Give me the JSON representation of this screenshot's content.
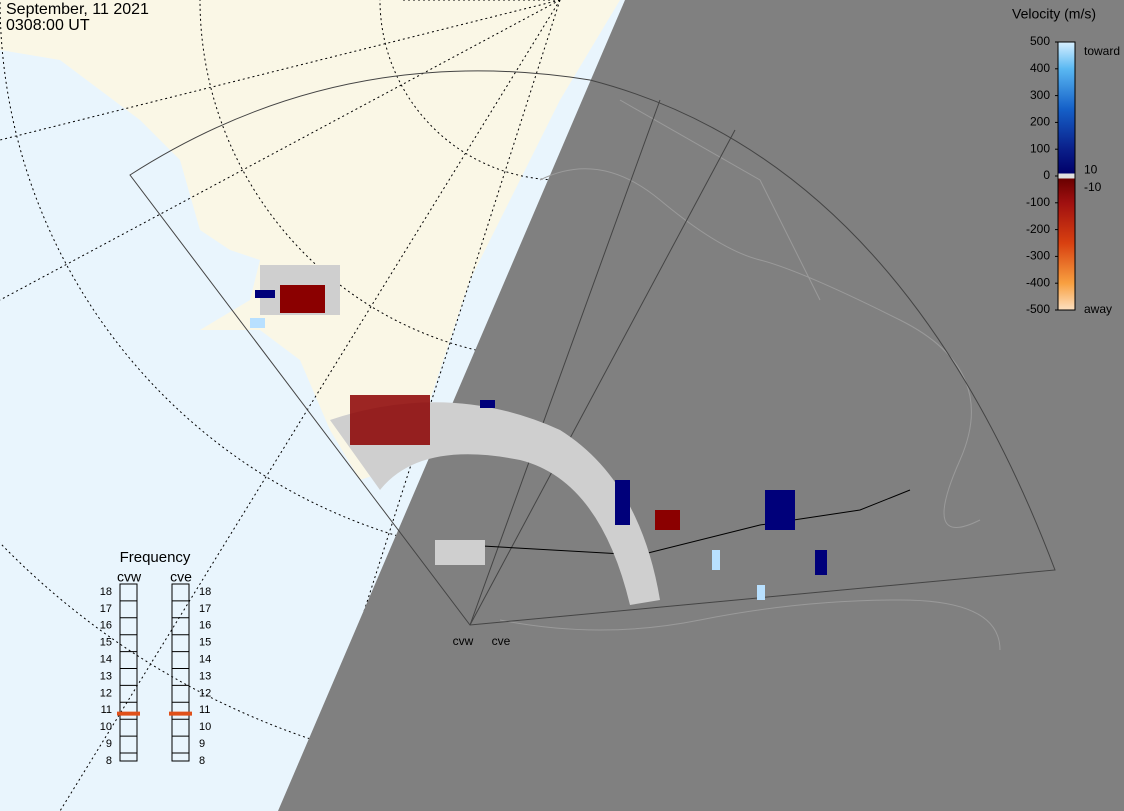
{
  "header": {
    "date": "September, 11 2021",
    "time": "0308:00 UT"
  },
  "velocity_scale": {
    "title": "Velocity (m/s)",
    "range": [
      -500,
      500
    ],
    "ticks": [
      500,
      400,
      300,
      200,
      100,
      0,
      -100,
      -200,
      -300,
      -400,
      -500
    ],
    "threshold_labels": [
      10,
      -10
    ],
    "toward": "toward",
    "away": "away"
  },
  "frequency": {
    "title": "Frequency",
    "range": [
      8,
      18
    ],
    "ticks": [
      8,
      9,
      10,
      11,
      12,
      13,
      14,
      15,
      16,
      17,
      18
    ],
    "radars": [
      {
        "name": "cvw",
        "value": 10.8
      },
      {
        "name": "cve",
        "value": 10.8
      }
    ]
  },
  "radar_sites": [
    "cvw",
    "cve"
  ]
}
